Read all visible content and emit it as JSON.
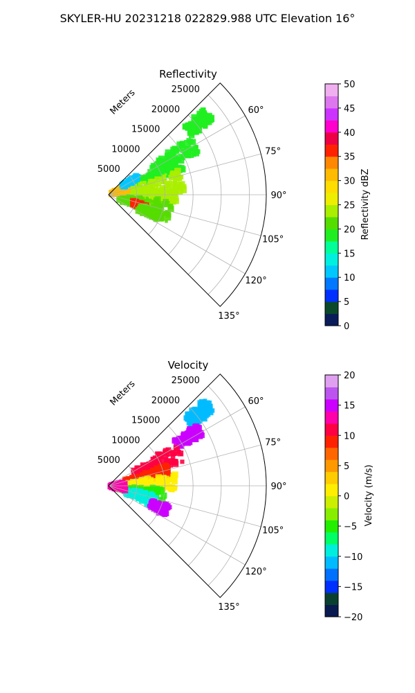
{
  "figure": {
    "suptitle": "SKYLER-HU  20231218  022829.988 UTC Elevation 16°"
  },
  "chart_data": [
    {
      "type": "heatmap",
      "subtype": "polar-sector radar PPI",
      "title": "Reflectivity",
      "radial_label": "Meters",
      "r_ticks": [
        "5000",
        "10000",
        "15000",
        "20000",
        "25000"
      ],
      "r_tick_values": [
        5000,
        10000,
        15000,
        20000,
        25000
      ],
      "rlim": [
        0,
        28000
      ],
      "theta_ticks": [
        "60°",
        "75°",
        "90°",
        "105°",
        "120°",
        "135°"
      ],
      "theta_tick_values": [
        60,
        75,
        90,
        105,
        120,
        135
      ],
      "theta_range_deg": [
        45,
        135
      ],
      "grid": true,
      "colorbar": {
        "label": "Reflectivity dBZ",
        "range": [
          0,
          50
        ],
        "ticks": [
          "0",
          "5",
          "10",
          "15",
          "20",
          "25",
          "30",
          "35",
          "40",
          "45",
          "50"
        ],
        "tick_values": [
          0,
          5,
          10,
          15,
          20,
          25,
          30,
          35,
          40,
          45,
          50
        ]
      },
      "echo_regions": [
        {
          "az": [
            48,
            55
          ],
          "r": [
            18000,
            23000
          ],
          "value": 19
        },
        {
          "az": [
            55,
            65
          ],
          "r": [
            9000,
            18000
          ],
          "value": 18
        },
        {
          "az": [
            62,
            72
          ],
          "r": [
            5000,
            14000
          ],
          "value": 19
        },
        {
          "az": [
            70,
            90
          ],
          "r": [
            3000,
            13500
          ],
          "value": 23
        },
        {
          "az": [
            85,
            100
          ],
          "r": [
            4000,
            12000
          ],
          "value": 24
        },
        {
          "az": [
            95,
            115
          ],
          "r": [
            2000,
            11500
          ],
          "value": 21
        },
        {
          "az": [
            104,
            112
          ],
          "r": [
            4500,
            7000
          ],
          "value": 37
        },
        {
          "az": [
            108,
            118
          ],
          "r": [
            6000,
            10000
          ],
          "value": 20
        },
        {
          "az": [
            60,
            80
          ],
          "r": [
            500,
            3500
          ],
          "value": 30
        },
        {
          "az": [
            55,
            62
          ],
          "r": [
            3000,
            6000
          ],
          "value": 12
        }
      ]
    },
    {
      "type": "heatmap",
      "subtype": "polar-sector radar PPI",
      "title": "Velocity",
      "radial_label": "Meters",
      "r_ticks": [
        "5000",
        "10000",
        "15000",
        "20000",
        "25000"
      ],
      "r_tick_values": [
        5000,
        10000,
        15000,
        20000,
        25000
      ],
      "rlim": [
        0,
        28000
      ],
      "theta_ticks": [
        "60°",
        "75°",
        "90°",
        "105°",
        "120°",
        "135°"
      ],
      "theta_tick_values": [
        60,
        75,
        90,
        105,
        120,
        135
      ],
      "theta_range_deg": [
        45,
        135
      ],
      "grid": true,
      "colorbar": {
        "label": "Velocity (m/s)",
        "range": [
          -20,
          20
        ],
        "ticks": [
          "−20",
          "−15",
          "−10",
          "−5",
          "0",
          "5",
          "10",
          "15",
          "20"
        ],
        "tick_values": [
          -20,
          -15,
          -10,
          -5,
          0,
          5,
          10,
          15,
          20
        ]
      },
      "echo_regions": [
        {
          "az": [
            48,
            55
          ],
          "r": [
            18000,
            23000
          ],
          "value": -11
        },
        {
          "az": [
            55,
            62
          ],
          "r": [
            14000,
            19000
          ],
          "value": 14
        },
        {
          "az": [
            58,
            72
          ],
          "r": [
            5000,
            14000
          ],
          "value": 11
        },
        {
          "az": [
            70,
            82
          ],
          "r": [
            3000,
            11000
          ],
          "value": 8
        },
        {
          "az": [
            80,
            95
          ],
          "r": [
            3000,
            12000
          ],
          "value": 1
        },
        {
          "az": [
            92,
            108
          ],
          "r": [
            2000,
            10000
          ],
          "value": -5
        },
        {
          "az": [
            100,
            115
          ],
          "r": [
            3000,
            9000
          ],
          "value": -9
        },
        {
          "az": [
            108,
            118
          ],
          "r": [
            8000,
            11500
          ],
          "value": 15
        },
        {
          "az": [
            75,
            110
          ],
          "r": [
            300,
            3000
          ],
          "value": 12
        }
      ]
    }
  ]
}
